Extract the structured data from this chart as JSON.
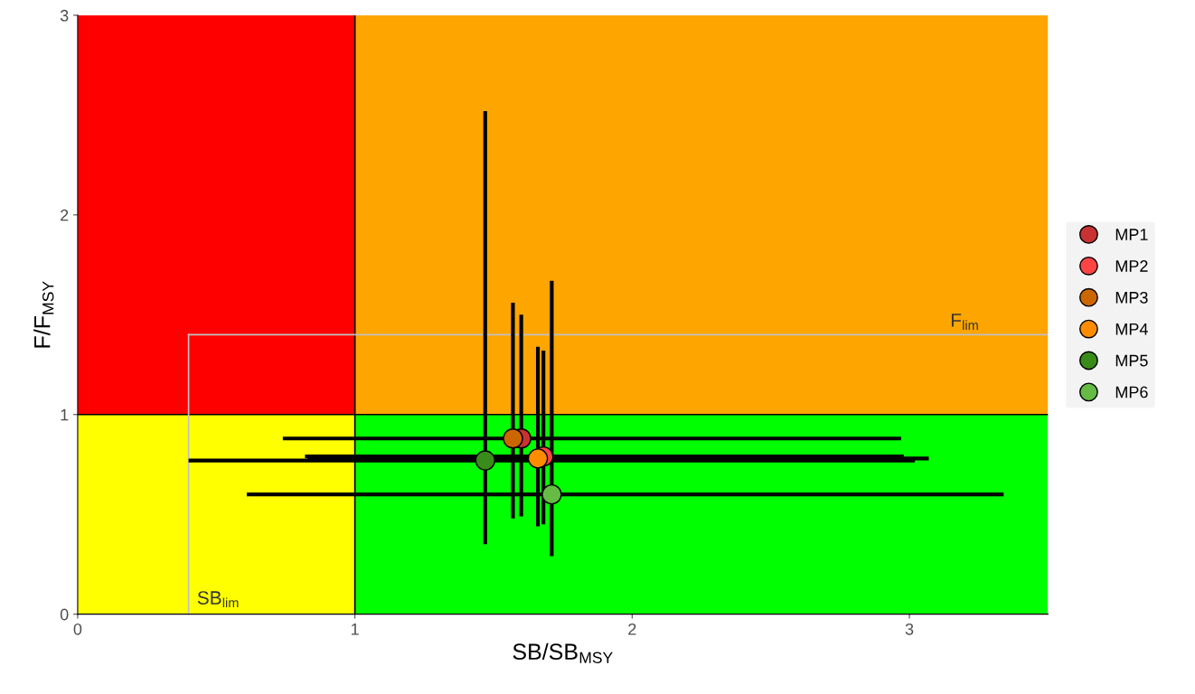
{
  "chart_data": {
    "type": "scatter",
    "xlabel": "SB/SB$_{MSY}$",
    "ylabel": "F/F$_{MSY}$",
    "xlim": [
      0,
      3.5
    ],
    "ylim": [
      0,
      3
    ],
    "xticks": [
      0,
      1,
      2,
      3
    ],
    "yticks": [
      0,
      1,
      2,
      3
    ],
    "grid": false,
    "legend": "right",
    "marker": "circle",
    "ref_lines": [
      {
        "axis": "x",
        "value": 1,
        "color": "#000000"
      },
      {
        "axis": "y",
        "value": 1,
        "color": "#000000"
      },
      {
        "axis": "x",
        "value": 0.4,
        "label": "SB$_{lim}$",
        "color": "#c0c0c0"
      },
      {
        "axis": "y",
        "value": 1.4,
        "label": "F$_{lim}$",
        "color": "#c0c0c0"
      }
    ],
    "series": [
      {
        "name": "MP1",
        "color": "#c83232",
        "x": [
          1.6
        ],
        "values": [
          0.88
        ],
        "errors": [
          [
            0.49,
            1.5
          ]
        ],
        "xerrors": [
          [
            0.74,
            2.97
          ]
        ]
      },
      {
        "name": "MP2",
        "color": "#ff4444",
        "x": [
          1.68
        ],
        "values": [
          0.79
        ],
        "errors": [
          [
            0.45,
            1.32
          ]
        ],
        "xerrors": [
          [
            0.82,
            2.98
          ]
        ]
      },
      {
        "name": "MP3",
        "color": "#cc6600",
        "x": [
          1.57
        ],
        "values": [
          0.88
        ],
        "errors": [
          [
            0.48,
            1.56
          ]
        ],
        "xerrors": [
          [
            0.74,
            2.97
          ]
        ]
      },
      {
        "name": "MP4",
        "color": "#ff8c00",
        "x": [
          1.66
        ],
        "values": [
          0.78
        ],
        "errors": [
          [
            0.44,
            1.34
          ]
        ],
        "xerrors": [
          [
            0.83,
            3.07
          ]
        ]
      },
      {
        "name": "MP5",
        "color": "#3a8c1a",
        "x": [
          1.47
        ],
        "values": [
          0.77
        ],
        "errors": [
          [
            0.35,
            2.52
          ]
        ],
        "xerrors": [
          [
            0.4,
            3.02
          ]
        ]
      },
      {
        "name": "MP6",
        "color": "#66bb44",
        "x": [
          1.71
        ],
        "values": [
          0.6
        ],
        "errors": [
          [
            0.29,
            1.67
          ]
        ],
        "xerrors": [
          [
            0.61,
            3.34
          ]
        ]
      }
    ]
  }
}
